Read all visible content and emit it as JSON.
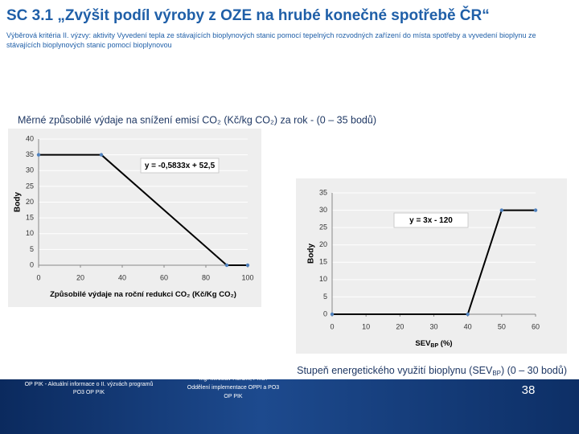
{
  "slide": {
    "title": "SC 3.1 „Zvýšit podíl výroby z OZE na hrubé konečné spotřebě ČR“",
    "subtitle": "Výběrová kritéria II. výzvy: aktivity Vyvedení tepla ze stávajících bioplynových stanic pomocí tepelných rozvodných zařízení do místa spotřeby a vyvedení bioplynu ze stávajících bioplynových stanic pomocí bioplynovou",
    "caption1": "Měrné způsobilé výdaje na snížení emisí CO₂ (Kč/kg CO₂) za rok - (0 – 35 bodů)",
    "caption2": [
      "Stupeň energetického využití bioplynu (SEV",
      "BP",
      ") (0 – 30 bodů)"
    ],
    "footer_left": "OP PIK - Aktuální informace o II. výzvách programů PO3 OP PIK",
    "footer_middle": [
      "Ing. Miroslav Honzík, Ph.D.",
      "Oddělení implementace OPPI a PO3",
      "OP PIK"
    ],
    "page": "38"
  },
  "chart_data": [
    {
      "type": "line",
      "x": [
        0,
        30,
        90,
        100
      ],
      "values": [
        35,
        35,
        0,
        0
      ],
      "color": "#000000",
      "marker_color": "#4f81bd",
      "xlim": [
        0,
        100
      ],
      "xticks": [
        0,
        20,
        40,
        60,
        80,
        100
      ],
      "ylim": [
        0,
        40
      ],
      "yticks": [
        0,
        5,
        10,
        15,
        20,
        25,
        30,
        35,
        40
      ],
      "ylabel": "Body",
      "xlabel": [
        "Způsobilé výdaje na roční redukci CO₂ (Kč/Kg CO₂)"
      ],
      "annotation": "y = -0,5833x + 52,5"
    },
    {
      "type": "line",
      "x": [
        0,
        40,
        50,
        60
      ],
      "values": [
        0,
        0,
        30,
        30
      ],
      "color": "#000000",
      "marker_color": "#4f81bd",
      "xlim": [
        0,
        60
      ],
      "xticks": [
        0,
        10,
        20,
        30,
        40,
        50,
        60
      ],
      "ylim": [
        0,
        35
      ],
      "yticks": [
        0,
        5,
        10,
        15,
        20,
        25,
        30,
        35
      ],
      "ylabel": "Body",
      "xlabel": [
        "SEV",
        "BP",
        " (%)"
      ],
      "annotation": "y = 3x - 120"
    }
  ]
}
